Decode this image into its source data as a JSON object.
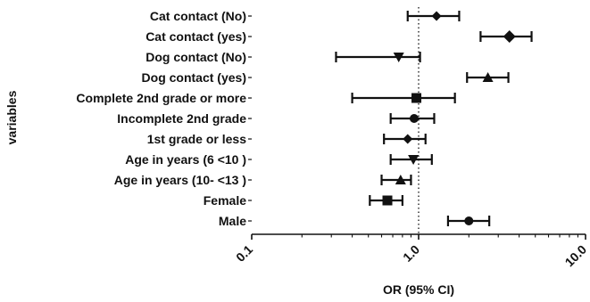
{
  "chart_data": {
    "type": "forest",
    "xlabel": "OR (95% CI)",
    "ylabel": "variables",
    "xscale": "log",
    "xlim": [
      0.1,
      10.0
    ],
    "x_ticks": [
      "0.1",
      "1.0",
      "10.0"
    ],
    "x_tick_values": [
      0.1,
      1.0,
      10.0
    ],
    "reference_line": 1.0,
    "reference_line_style": "dotted",
    "rows": [
      {
        "label": "Cat contact (No)",
        "or": 1.28,
        "lower": 0.86,
        "upper": 1.75,
        "marker": "diamond-small"
      },
      {
        "label": "Cat contact (yes)",
        "or": 3.5,
        "lower": 2.35,
        "upper": 4.75,
        "marker": "diamond"
      },
      {
        "label": "Dog contact (No)",
        "or": 0.76,
        "lower": 0.32,
        "upper": 1.02,
        "marker": "triangle-down"
      },
      {
        "label": "Dog contact (yes)",
        "or": 2.6,
        "lower": 1.95,
        "upper": 3.45,
        "marker": "triangle-up"
      },
      {
        "label": "Complete 2nd grade or more",
        "or": 0.97,
        "lower": 0.4,
        "upper": 1.65,
        "marker": "square"
      },
      {
        "label": "Incomplete 2nd grade",
        "or": 0.94,
        "lower": 0.68,
        "upper": 1.24,
        "marker": "circle"
      },
      {
        "label": "1st grade or less",
        "or": 0.86,
        "lower": 0.62,
        "upper": 1.1,
        "marker": "diamond-small"
      },
      {
        "label": "Age  in years (6 <10 )",
        "or": 0.93,
        "lower": 0.68,
        "upper": 1.2,
        "marker": "triangle-down"
      },
      {
        "label": "Age  in years (10- <13 )",
        "or": 0.78,
        "lower": 0.6,
        "upper": 0.9,
        "marker": "triangle-up"
      },
      {
        "label": "Female",
        "or": 0.65,
        "lower": 0.51,
        "upper": 0.8,
        "marker": "square"
      },
      {
        "label": "Male",
        "or": 2.0,
        "lower": 1.5,
        "upper": 2.65,
        "marker": "circle"
      }
    ]
  }
}
